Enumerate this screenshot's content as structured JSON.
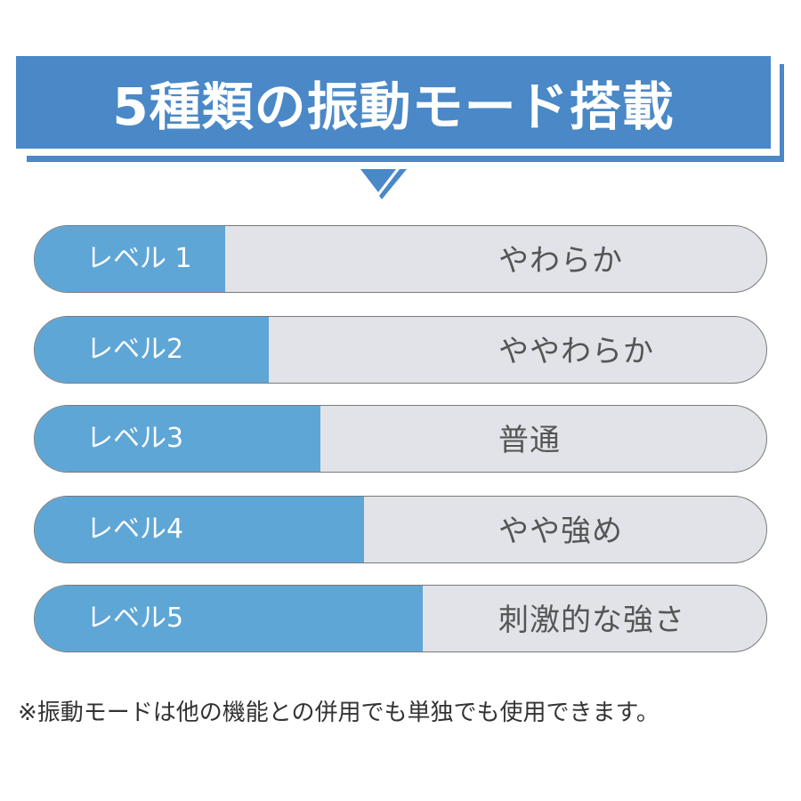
{
  "header": {
    "title": "5種類の振動モード搭載"
  },
  "colors": {
    "banner": "#4a88c7",
    "fill": "#5ea6d6",
    "track": "#e1e3e8",
    "text": "#555555"
  },
  "levels": [
    {
      "label": "レベル 1",
      "description": "やわらか",
      "fill_percent": 26
    },
    {
      "label": "レベル2",
      "description": "ややわらか",
      "fill_percent": 32
    },
    {
      "label": "レベル3",
      "description": "普通",
      "fill_percent": 39
    },
    {
      "label": "レベル4",
      "description": "やや強め",
      "fill_percent": 45
    },
    {
      "label": "レベル5",
      "description": "刺激的な強さ",
      "fill_percent": 53
    }
  ],
  "note": "※振動モードは他の機能との併用でも単独でも使用できます。"
}
